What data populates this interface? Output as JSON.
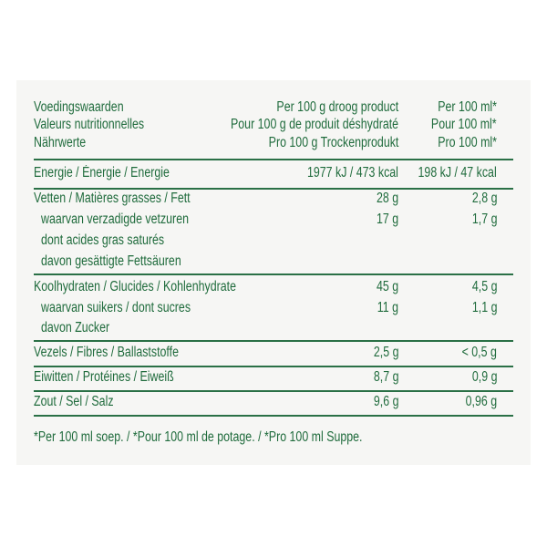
{
  "header": {
    "rows": [
      {
        "label": "Voedingswaarden",
        "col1": "Per 100 g droog product",
        "col2": "Per 100 ml*"
      },
      {
        "label": "Valeurs nutritionnelles",
        "col1": "Pour 100 g de produit déshydraté",
        "col2": "Pour 100 ml*"
      },
      {
        "label": "Nährwerte",
        "col1": "Pro 100 g Trockenprodukt",
        "col2": "Pro 100 ml*"
      }
    ]
  },
  "nutrients": {
    "energy": {
      "label": "Energie / Énergie / Energie",
      "col1": "1977 kJ / 473 kcal",
      "col2": "198 kJ / 47 kcal"
    },
    "fat": {
      "label": "Vetten / Matières grasses / Fett",
      "col1": "28 g",
      "col2": "2,8 g",
      "sub": [
        "waarvan verzadigde vetzuren",
        "dont acides gras saturés",
        "davon gesättigte Fettsäuren"
      ],
      "sub_col1": "17 g",
      "sub_col2": "1,7 g"
    },
    "carbs": {
      "label": "Koolhydraten / Glucides / Kohlenhydrate",
      "col1": "45 g",
      "col2": "4,5 g",
      "sub": [
        "waarvan suikers / dont sucres",
        "davon Zucker"
      ],
      "sub_col1": "11 g",
      "sub_col2": "1,1 g"
    },
    "fibre": {
      "label": "Vezels / Fibres / Ballaststoffe",
      "col1": "2,5 g",
      "col2": "< 0,5 g"
    },
    "protein": {
      "label": "Eiwitten / Protéines / Eiweiß",
      "col1": "8,7 g",
      "col2": "0,9 g"
    },
    "salt": {
      "label": "Zout / Sel / Salz",
      "col1": "9,6 g",
      "col2": "0,96 g"
    }
  },
  "footnote": "*Per 100 ml soep. / *Pour 100 ml de potage. / *Pro 100 ml Suppe.",
  "colors": {
    "text": "#1f6b3c",
    "background": "#f6f6f4"
  }
}
